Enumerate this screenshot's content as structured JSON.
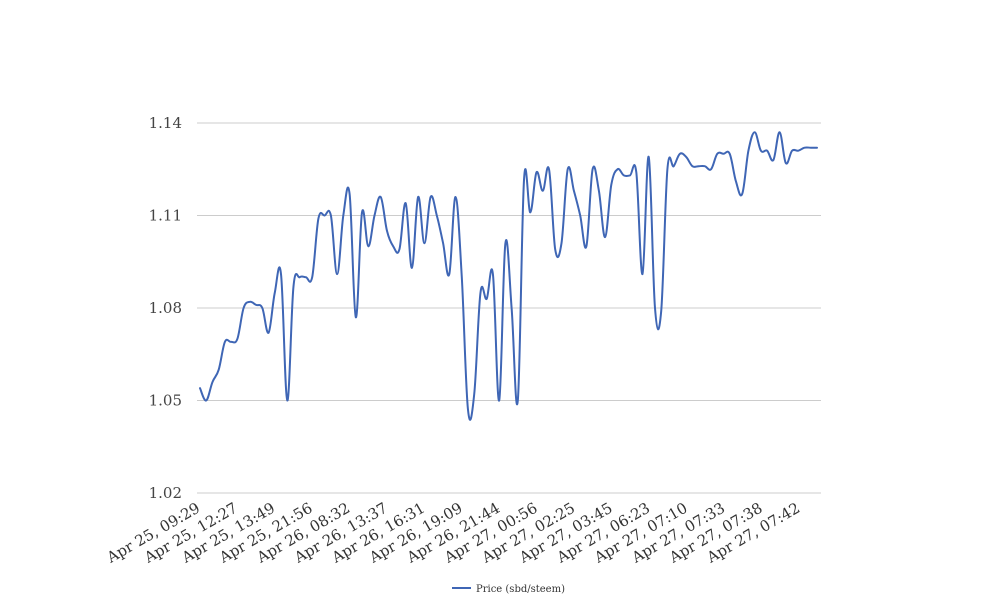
{
  "chart_data": {
    "type": "line",
    "title": "",
    "xlabel": "",
    "ylabel": "",
    "ylim": [
      1.02,
      1.14
    ],
    "yticks": [
      1.02,
      1.05,
      1.08,
      1.11,
      1.14
    ],
    "ytick_labels": [
      "1.02",
      "1.05",
      "1.08",
      "1.11",
      "1.14"
    ],
    "grid": true,
    "legend": "bottom",
    "color": "#3f66b5",
    "x_tick_labels": [
      "Apr 25, 09:29",
      "Apr 25, 12:27",
      "Apr 25, 13:49",
      "Apr 25, 21:56",
      "Apr 26, 08:32",
      "Apr 26, 13:37",
      "Apr 26, 16:31",
      "Apr 26, 19:09",
      "Apr 26, 21:44",
      "Apr 27, 00:56",
      "Apr 27, 02:25",
      "Apr 27, 03:45",
      "Apr 27, 06:23",
      "Apr 27, 07:10",
      "Apr 27, 07:33",
      "Apr 27, 07:38",
      "Apr 27, 07:42"
    ],
    "series": [
      {
        "name": "Price (sbd/steem)",
        "values": [
          1.054,
          1.05,
          1.056,
          1.06,
          1.069,
          1.069,
          1.07,
          1.08,
          1.082,
          1.081,
          1.08,
          1.072,
          1.085,
          1.091,
          1.05,
          1.087,
          1.09,
          1.09,
          1.09,
          1.109,
          1.11,
          1.11,
          1.091,
          1.11,
          1.117,
          1.077,
          1.111,
          1.1,
          1.11,
          1.116,
          1.105,
          1.1,
          1.099,
          1.114,
          1.093,
          1.116,
          1.101,
          1.116,
          1.11,
          1.101,
          1.091,
          1.116,
          1.09,
          1.047,
          1.052,
          1.085,
          1.083,
          1.091,
          1.05,
          1.101,
          1.08,
          1.05,
          1.122,
          1.111,
          1.124,
          1.118,
          1.125,
          1.099,
          1.101,
          1.125,
          1.118,
          1.11,
          1.1,
          1.125,
          1.118,
          1.103,
          1.12,
          1.125,
          1.123,
          1.123,
          1.124,
          1.091,
          1.129,
          1.08,
          1.079,
          1.125,
          1.126,
          1.13,
          1.129,
          1.126,
          1.126,
          1.126,
          1.125,
          1.13,
          1.13,
          1.13,
          1.121,
          1.117,
          1.131,
          1.137,
          1.131,
          1.131,
          1.128,
          1.137,
          1.127,
          1.131,
          1.131,
          1.132,
          1.132,
          1.132
        ]
      }
    ]
  }
}
